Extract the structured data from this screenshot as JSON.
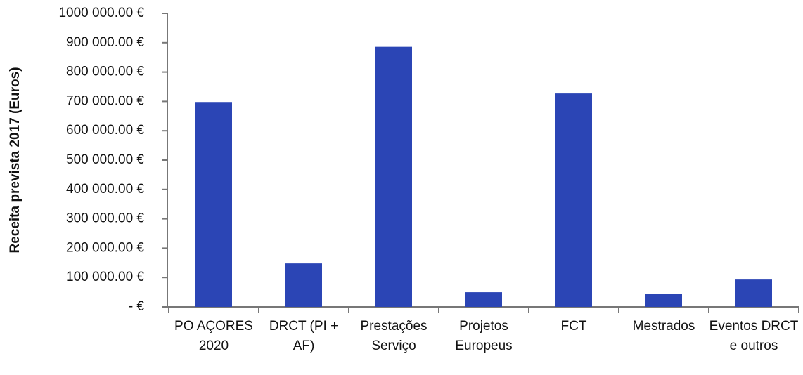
{
  "chart_data": {
    "type": "bar",
    "y_label": "Receita prevista 2017 (Euros)",
    "categories": [
      "PO AÇORES 2020",
      "DRCT (PI + AF)",
      "Prestações Serviço",
      "Projetos Europeus",
      "FCT",
      "Mestrados",
      "Eventos DRCT e outros"
    ],
    "values": [
      698000,
      148000,
      886000,
      50000,
      727000,
      45000,
      93000
    ],
    "color": "#2b45b5",
    "ylim": [
      0,
      1000000
    ],
    "yticks": [
      {
        "value": 0,
        "label": "-  €"
      },
      {
        "value": 100000,
        "label": "100 000.00 €"
      },
      {
        "value": 200000,
        "label": "200 000.00 €"
      },
      {
        "value": 300000,
        "label": "300 000.00 €"
      },
      {
        "value": 400000,
        "label": "400 000.00 €"
      },
      {
        "value": 500000,
        "label": "500 000.00 €"
      },
      {
        "value": 600000,
        "label": "600 000.00 €"
      },
      {
        "value": 700000,
        "label": "700 000.00 €"
      },
      {
        "value": 800000,
        "label": "800 000.00 €"
      },
      {
        "value": 900000,
        "label": "900 000.00 €"
      },
      {
        "value": 1000000,
        "label": "1000 000.00 €"
      }
    ],
    "grid": false
  }
}
